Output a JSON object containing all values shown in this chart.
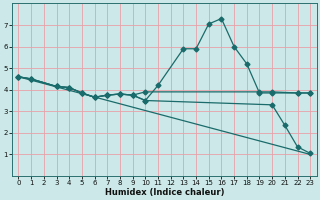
{
  "xlabel": "Humidex (Indice chaleur)",
  "background_color": "#cce8e8",
  "grid_color": "#e8a0a8",
  "line_color": "#1a6b6b",
  "xlim": [
    -0.5,
    23.5
  ],
  "ylim": [
    0,
    8
  ],
  "xticks": [
    0,
    1,
    2,
    3,
    4,
    5,
    6,
    7,
    8,
    9,
    10,
    11,
    12,
    13,
    14,
    15,
    16,
    17,
    18,
    19,
    20,
    21,
    22,
    23
  ],
  "yticks": [
    1,
    2,
    3,
    4,
    5,
    6,
    7
  ],
  "line_spike": {
    "x": [
      0,
      1,
      3,
      4,
      5,
      6,
      7,
      8,
      9,
      10,
      11,
      13,
      14,
      15,
      16,
      17,
      18,
      19,
      20,
      22,
      23
    ],
    "y": [
      4.6,
      4.5,
      4.15,
      4.1,
      3.85,
      3.65,
      3.75,
      3.8,
      3.75,
      3.5,
      4.2,
      5.9,
      5.9,
      7.05,
      7.3,
      6.0,
      5.2,
      3.85,
      3.85,
      3.85,
      3.85
    ]
  },
  "line_flat": {
    "x": [
      0,
      1,
      3,
      4,
      5,
      6,
      7,
      8,
      9,
      10,
      19,
      20,
      22,
      23
    ],
    "y": [
      4.6,
      4.5,
      4.15,
      4.1,
      3.85,
      3.65,
      3.75,
      3.8,
      3.75,
      3.9,
      3.9,
      3.9,
      3.85,
      3.85
    ]
  },
  "line_diagonal": {
    "x": [
      0,
      23
    ],
    "y": [
      4.6,
      1.0
    ]
  },
  "line_drop": {
    "x": [
      0,
      1,
      3,
      4,
      5,
      6,
      7,
      8,
      9,
      10,
      20,
      21,
      22,
      23
    ],
    "y": [
      4.6,
      4.5,
      4.15,
      4.1,
      3.85,
      3.65,
      3.75,
      3.8,
      3.75,
      3.5,
      3.3,
      2.35,
      1.35,
      1.05
    ]
  }
}
